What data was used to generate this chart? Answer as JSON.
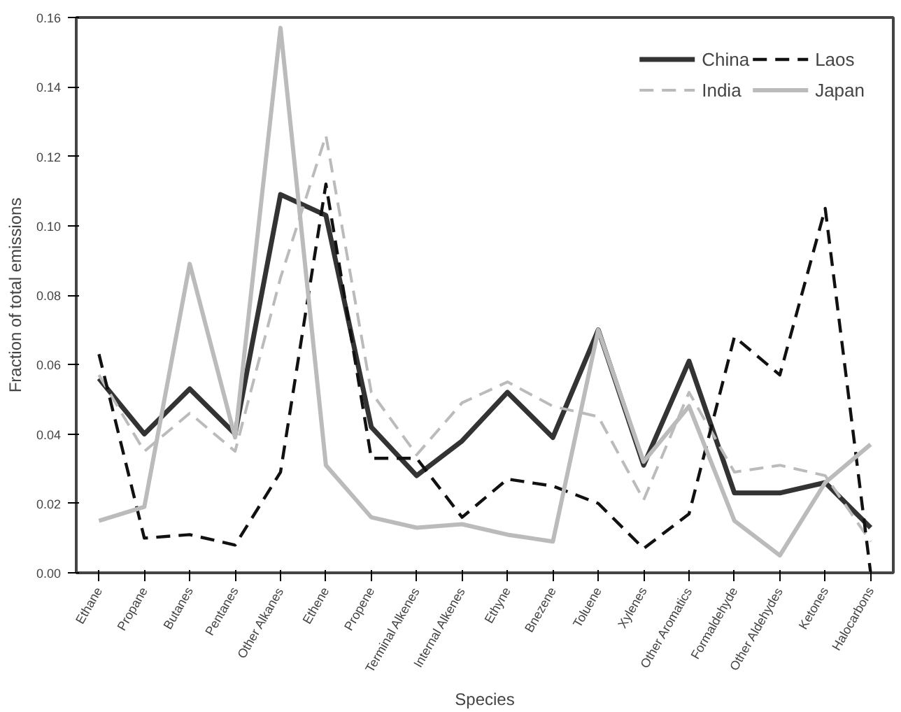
{
  "chart_data": {
    "type": "line",
    "xlabel": "Species",
    "ylabel": "Fraction of total emissions",
    "categories": [
      "Ethane",
      "Propane",
      "Butanes",
      "Pentanes",
      "Other Alkanes",
      "Ethene",
      "Propene",
      "Terminal Alkenes",
      "Internal Alkenes",
      "Ethyne",
      "Bnezene",
      "Toluene",
      "Xylenes",
      "Other Aromatics",
      "Formaldehyde",
      "Other Aldehydes",
      "Ketones",
      "Halocarbons"
    ],
    "ylim": [
      0,
      0.16
    ],
    "yticks": [
      {
        "value": 0,
        "label": "0.00"
      },
      {
        "value": 0.02,
        "label": "0.02"
      },
      {
        "value": 0.04,
        "label": "0.04"
      },
      {
        "value": 0.06,
        "label": "0.06"
      },
      {
        "value": 0.08,
        "label": "0.08"
      },
      {
        "value": 0.1,
        "label": "0.10"
      },
      {
        "value": 0.12,
        "label": "0.12"
      },
      {
        "value": 0.14,
        "label": "0.14"
      },
      {
        "value": 0.16,
        "label": "0.16"
      }
    ],
    "grid": false,
    "legend": "top right",
    "marker": "none",
    "series": [
      {
        "name": "China",
        "color": "#333333",
        "line_style": "solid",
        "values": [
          0.056,
          0.04,
          0.053,
          0.04,
          0.109,
          0.103,
          0.042,
          0.028,
          0.038,
          0.052,
          0.039,
          0.07,
          0.031,
          0.061,
          0.023,
          0.023,
          0.026,
          0.013
        ]
      },
      {
        "name": "India",
        "color": "#bbbbbb",
        "line_style": "dashed",
        "values": [
          0.057,
          0.035,
          0.046,
          0.035,
          0.085,
          0.126,
          0.052,
          0.034,
          0.049,
          0.055,
          0.048,
          0.045,
          0.021,
          0.052,
          0.029,
          0.031,
          0.028,
          0.009
        ]
      },
      {
        "name": "Laos",
        "color": "#111111",
        "line_style": "dashed",
        "values": [
          0.063,
          0.01,
          0.011,
          0.008,
          0.029,
          0.112,
          0.033,
          0.033,
          0.016,
          0.027,
          0.025,
          0.02,
          0.007,
          0.017,
          0.068,
          0.057,
          0.105,
          0.0
        ]
      },
      {
        "name": "Japan",
        "color": "#bbbbbb",
        "line_style": "solid",
        "values": [
          0.015,
          0.019,
          0.089,
          0.039,
          0.157,
          0.031,
          0.016,
          0.013,
          0.014,
          0.011,
          0.009,
          0.07,
          0.032,
          0.048,
          0.015,
          0.005,
          0.026,
          0.037
        ]
      }
    ]
  }
}
